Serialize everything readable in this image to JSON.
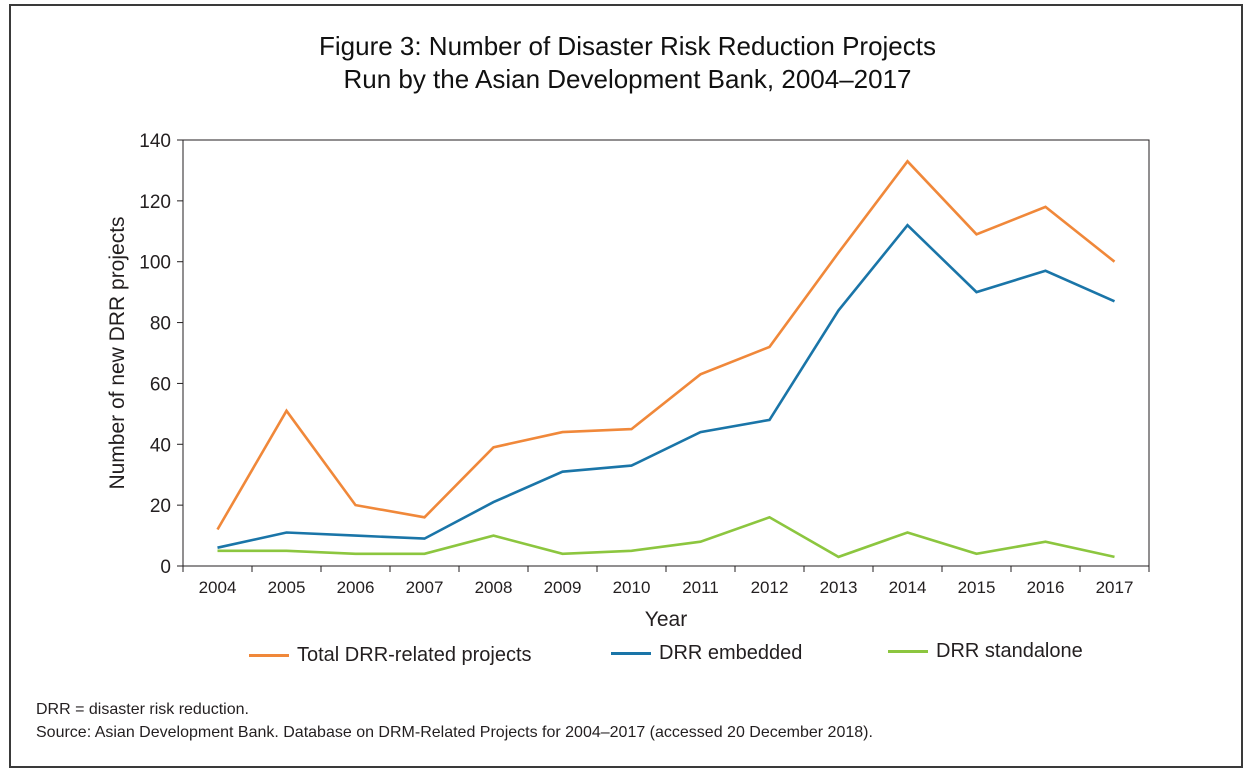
{
  "figure": {
    "title_line1": "Figure 3: Number of Disaster Risk Reduction Projects",
    "title_line2": "Run by the Asian Development Bank, 2004–2017",
    "note": "DRR = disaster risk reduction.",
    "source": "Source: Asian Development Bank. Database on DRM-Related Projects for 2004–2017 (accessed 20 December 2018)."
  },
  "chart_data": {
    "type": "line",
    "xlabel": "Year",
    "ylabel": "Number of new DRR projects",
    "ylim": [
      0,
      140
    ],
    "yticks": [
      0,
      20,
      40,
      60,
      80,
      100,
      120,
      140
    ],
    "grid": false,
    "legend_position": "bottom",
    "categories": [
      "2004",
      "2005",
      "2006",
      "2007",
      "2008",
      "2009",
      "2010",
      "2011",
      "2012",
      "2013",
      "2014",
      "2015",
      "2016",
      "2017"
    ],
    "series": [
      {
        "name": "Total DRR-related projects",
        "color": "#f0883a",
        "values": [
          12,
          51,
          20,
          16,
          39,
          44,
          45,
          63,
          72,
          103,
          133,
          109,
          118,
          100
        ]
      },
      {
        "name": "DRR embedded",
        "color": "#1a75a8",
        "values": [
          6,
          11,
          10,
          9,
          21,
          31,
          33,
          44,
          48,
          84,
          112,
          90,
          97,
          87
        ]
      },
      {
        "name": "DRR standalone",
        "color": "#8cc63f",
        "values": [
          5,
          5,
          4,
          4,
          10,
          4,
          5,
          8,
          16,
          3,
          11,
          4,
          8,
          3
        ]
      }
    ]
  }
}
